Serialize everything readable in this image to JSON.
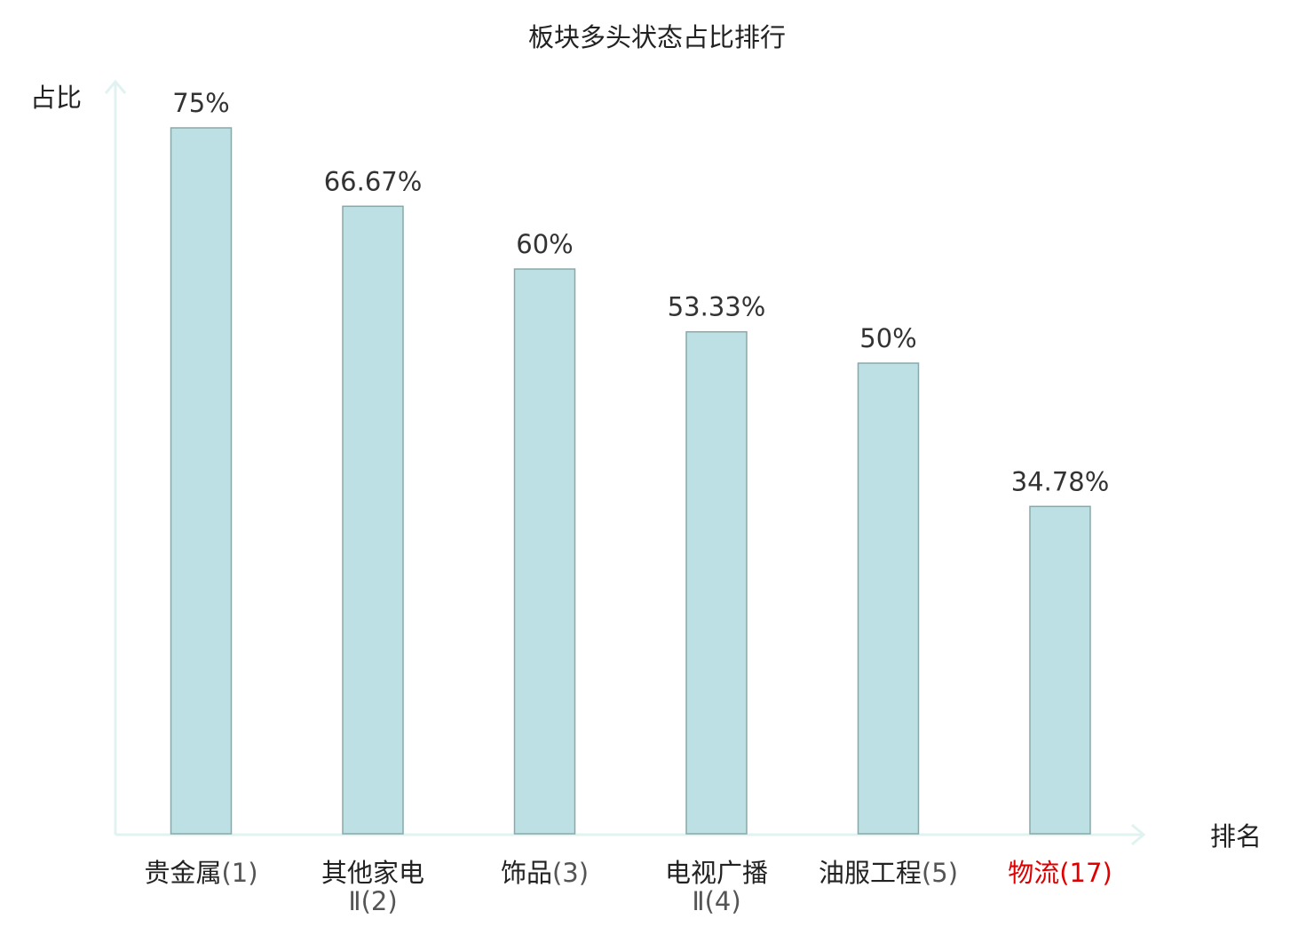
{
  "chart_data": {
    "type": "bar",
    "title": "板块多头状态占比排行",
    "xlabel": "排名",
    "ylabel": "占比",
    "ylim": [
      0,
      80
    ],
    "grid": false,
    "legend": "none",
    "categories": [
      {
        "name_lines": [
          "贵金属"
        ],
        "rank": "(1)",
        "highlight": false
      },
      {
        "name_lines": [
          "其他家电",
          "Ⅱ"
        ],
        "rank": "(2)",
        "highlight": false
      },
      {
        "name_lines": [
          "饰品"
        ],
        "rank": "(3)",
        "highlight": false
      },
      {
        "name_lines": [
          "电视广播",
          "Ⅱ"
        ],
        "rank": "(4)",
        "highlight": false
      },
      {
        "name_lines": [
          "油服工程"
        ],
        "rank": "(5)",
        "highlight": false
      },
      {
        "name_lines": [
          "物流"
        ],
        "rank": "(17)",
        "highlight": true
      }
    ],
    "values": [
      75,
      66.67,
      60,
      53.33,
      50,
      34.78
    ],
    "value_labels": [
      "75%",
      "66.67%",
      "60%",
      "53.33%",
      "50%",
      "34.78%"
    ],
    "colors": {
      "bar_fill": "#bce0e3",
      "bar_stroke": "#8aa8aa",
      "axis": "#e0f3f1",
      "text": "#222222",
      "value_text": "#333333",
      "rank_text": "#555555",
      "highlight": "#e00000"
    }
  }
}
